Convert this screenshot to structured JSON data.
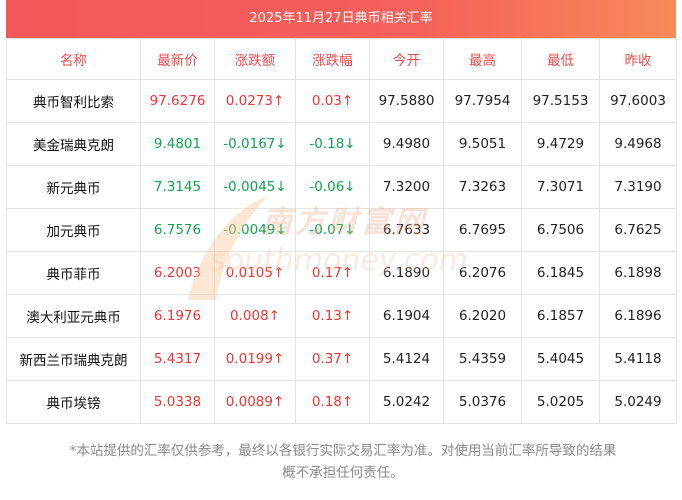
{
  "chart_data": {
    "type": "table",
    "title": "2025年11月27日典币相关汇率",
    "columns": [
      "名称",
      "最新价",
      "涨跌额",
      "涨跌幅",
      "今开",
      "最高",
      "最低",
      "昨收"
    ],
    "rows": [
      {
        "name": "典币智利比索",
        "latest": "97.6276",
        "change": "0.0273↑",
        "pct": "0.03↑",
        "open": "97.5880",
        "high": "97.7954",
        "low": "97.5153",
        "prev": "97.6003",
        "dir": "up"
      },
      {
        "name": "美金瑞典克朗",
        "latest": "9.4801",
        "change": "-0.0167↓",
        "pct": "-0.18↓",
        "open": "9.4980",
        "high": "9.5051",
        "low": "9.4729",
        "prev": "9.4968",
        "dir": "down"
      },
      {
        "name": "新元典币",
        "latest": "7.3145",
        "change": "-0.0045↓",
        "pct": "-0.06↓",
        "open": "7.3200",
        "high": "7.3263",
        "low": "7.3071",
        "prev": "7.3190",
        "dir": "down"
      },
      {
        "name": "加元典币",
        "latest": "6.7576",
        "change": "-0.0049↓",
        "pct": "-0.07↓",
        "open": "6.7633",
        "high": "6.7695",
        "low": "6.7506",
        "prev": "6.7625",
        "dir": "down"
      },
      {
        "name": "典币菲币",
        "latest": "6.2003",
        "change": "0.0105↑",
        "pct": "0.17↑",
        "open": "6.1890",
        "high": "6.2076",
        "low": "6.1845",
        "prev": "6.1898",
        "dir": "up"
      },
      {
        "name": "澳大利亚元典币",
        "latest": "6.1976",
        "change": "0.008↑",
        "pct": "0.13↑",
        "open": "6.1904",
        "high": "6.2020",
        "low": "6.1857",
        "prev": "6.1896",
        "dir": "up"
      },
      {
        "name": "新西兰币瑞典克朗",
        "latest": "5.4317",
        "change": "0.0199↑",
        "pct": "0.37↑",
        "open": "5.4124",
        "high": "5.4359",
        "low": "5.4045",
        "prev": "5.4118",
        "dir": "up"
      },
      {
        "name": "典币埃镑",
        "latest": "5.0338",
        "change": "0.0089↑",
        "pct": "0.18↑",
        "open": "5.0242",
        "high": "5.0376",
        "low": "5.0205",
        "prev": "5.0249",
        "dir": "up"
      }
    ],
    "colors": {
      "header_text": "#f04b4b",
      "up": "#f03434",
      "down": "#11a350",
      "title_bg": "#f2575a"
    }
  },
  "watermark": {
    "cn": "南方财富网",
    "en": "southmoney.com"
  },
  "footer": {
    "line1": "*本站提供的汇率仅供参考，最终以各银行实际交易汇率为准。对使用当前汇率所导致的结果",
    "line2": "概不承担任何责任。"
  }
}
